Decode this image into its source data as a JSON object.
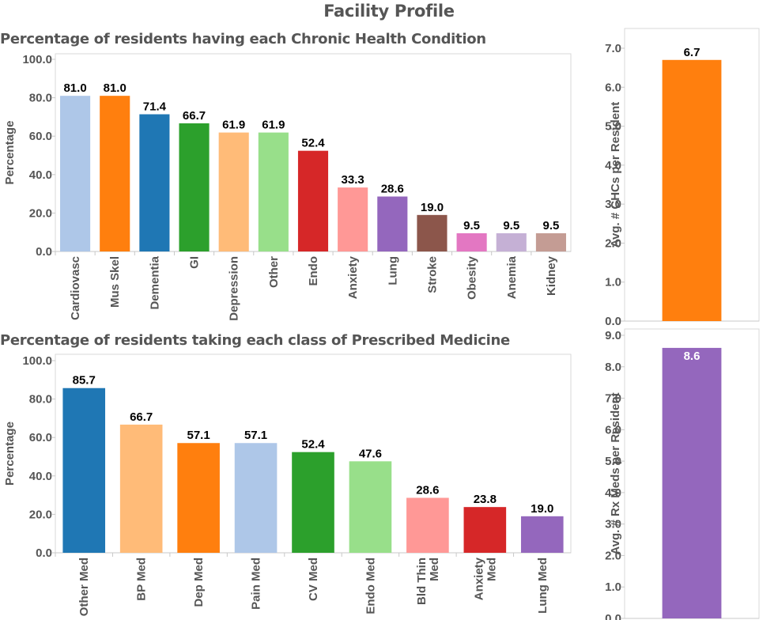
{
  "page": {
    "title": "Facility Profile"
  },
  "chart_data": [
    {
      "id": "chc",
      "type": "bar",
      "title": "Percentage of residents having each Chronic Health Condition",
      "xlabel": "",
      "ylabel": "Percentage",
      "ylim": [
        0,
        100
      ],
      "yticks": [
        "0.0",
        "20.0",
        "40.0",
        "60.0",
        "80.0",
        "100.0"
      ],
      "categories": [
        "Cardiovasc",
        "Mus Skel",
        "Dementia",
        "GI",
        "Depression",
        "Other",
        "Endo",
        "Anxiety",
        "Lung",
        "Stroke",
        "Obesity",
        "Anemia",
        "Kidney"
      ],
      "values": [
        81.0,
        81.0,
        71.4,
        66.7,
        61.9,
        61.9,
        52.4,
        33.3,
        28.6,
        19.0,
        9.5,
        9.5,
        9.5
      ],
      "labels": [
        "81.0",
        "81.0",
        "71.4",
        "66.7",
        "61.9",
        "61.9",
        "52.4",
        "33.3",
        "28.6",
        "19.0",
        "9.5",
        "9.5",
        "9.5"
      ],
      "colors": [
        "#aec7e8",
        "#ff7f0e",
        "#1f77b4",
        "#2ca02c",
        "#ffbb78",
        "#98df8a",
        "#d62728",
        "#ff9896",
        "#9467bd",
        "#8c564b",
        "#e377c2",
        "#c5b0d5",
        "#c49c94"
      ],
      "grid": false
    },
    {
      "id": "chc-avg",
      "type": "bar",
      "title": "",
      "xlabel": "",
      "ylabel": "Avg. # CHCs per Resident",
      "ylim": [
        0,
        7.0
      ],
      "yticks": [
        "0.0",
        "1.0",
        "2.0",
        "3.0",
        "4.0",
        "5.0",
        "6.0",
        "7.0"
      ],
      "categories": [
        ""
      ],
      "values": [
        6.7
      ],
      "labels": [
        "6.7"
      ],
      "colors": [
        "#ff7f0e"
      ],
      "grid": false
    },
    {
      "id": "rx",
      "type": "bar",
      "title": "Percentage of residents taking each class of Prescribed Medicine",
      "xlabel": "",
      "ylabel": "Percentage",
      "ylim": [
        0,
        100
      ],
      "yticks": [
        "0.0",
        "20.0",
        "40.0",
        "60.0",
        "80.0",
        "100.0"
      ],
      "categories": [
        "Other Med",
        "BP Med",
        "Dep Med",
        "Pain Med",
        "CV Med",
        "Endo Med",
        "Bld Thin Med",
        "Anxiety Med",
        "Lung Med"
      ],
      "category_lines": [
        [
          "Other Med"
        ],
        [
          "BP Med"
        ],
        [
          "Dep Med"
        ],
        [
          "Pain Med"
        ],
        [
          "CV Med"
        ],
        [
          "Endo Med"
        ],
        [
          "Bld Thin",
          "Med"
        ],
        [
          "Anxiety",
          "Med"
        ],
        [
          "Lung Med"
        ]
      ],
      "values": [
        85.7,
        66.7,
        57.1,
        57.1,
        52.4,
        47.6,
        28.6,
        23.8,
        19.0
      ],
      "labels": [
        "85.7",
        "66.7",
        "57.1",
        "57.1",
        "52.4",
        "47.6",
        "28.6",
        "23.8",
        "19.0"
      ],
      "colors": [
        "#1f77b4",
        "#ffbb78",
        "#ff7f0e",
        "#aec7e8",
        "#2ca02c",
        "#98df8a",
        "#ff9896",
        "#d62728",
        "#9467bd"
      ],
      "grid": false
    },
    {
      "id": "rx-avg",
      "type": "bar",
      "title": "",
      "xlabel": "",
      "ylabel": "Avg. # Rx Meds per Resident",
      "ylim": [
        0,
        9.0
      ],
      "yticks": [
        "0.0",
        "1.0",
        "2.0",
        "3.0",
        "4.0",
        "5.0",
        "6.0",
        "7.0",
        "8.0",
        "9.0"
      ],
      "categories": [
        ""
      ],
      "values": [
        8.6
      ],
      "labels": [
        "8.6"
      ],
      "colors": [
        "#9467bd"
      ],
      "label_color": "#ffffff",
      "label_inside": true,
      "grid": false
    }
  ]
}
